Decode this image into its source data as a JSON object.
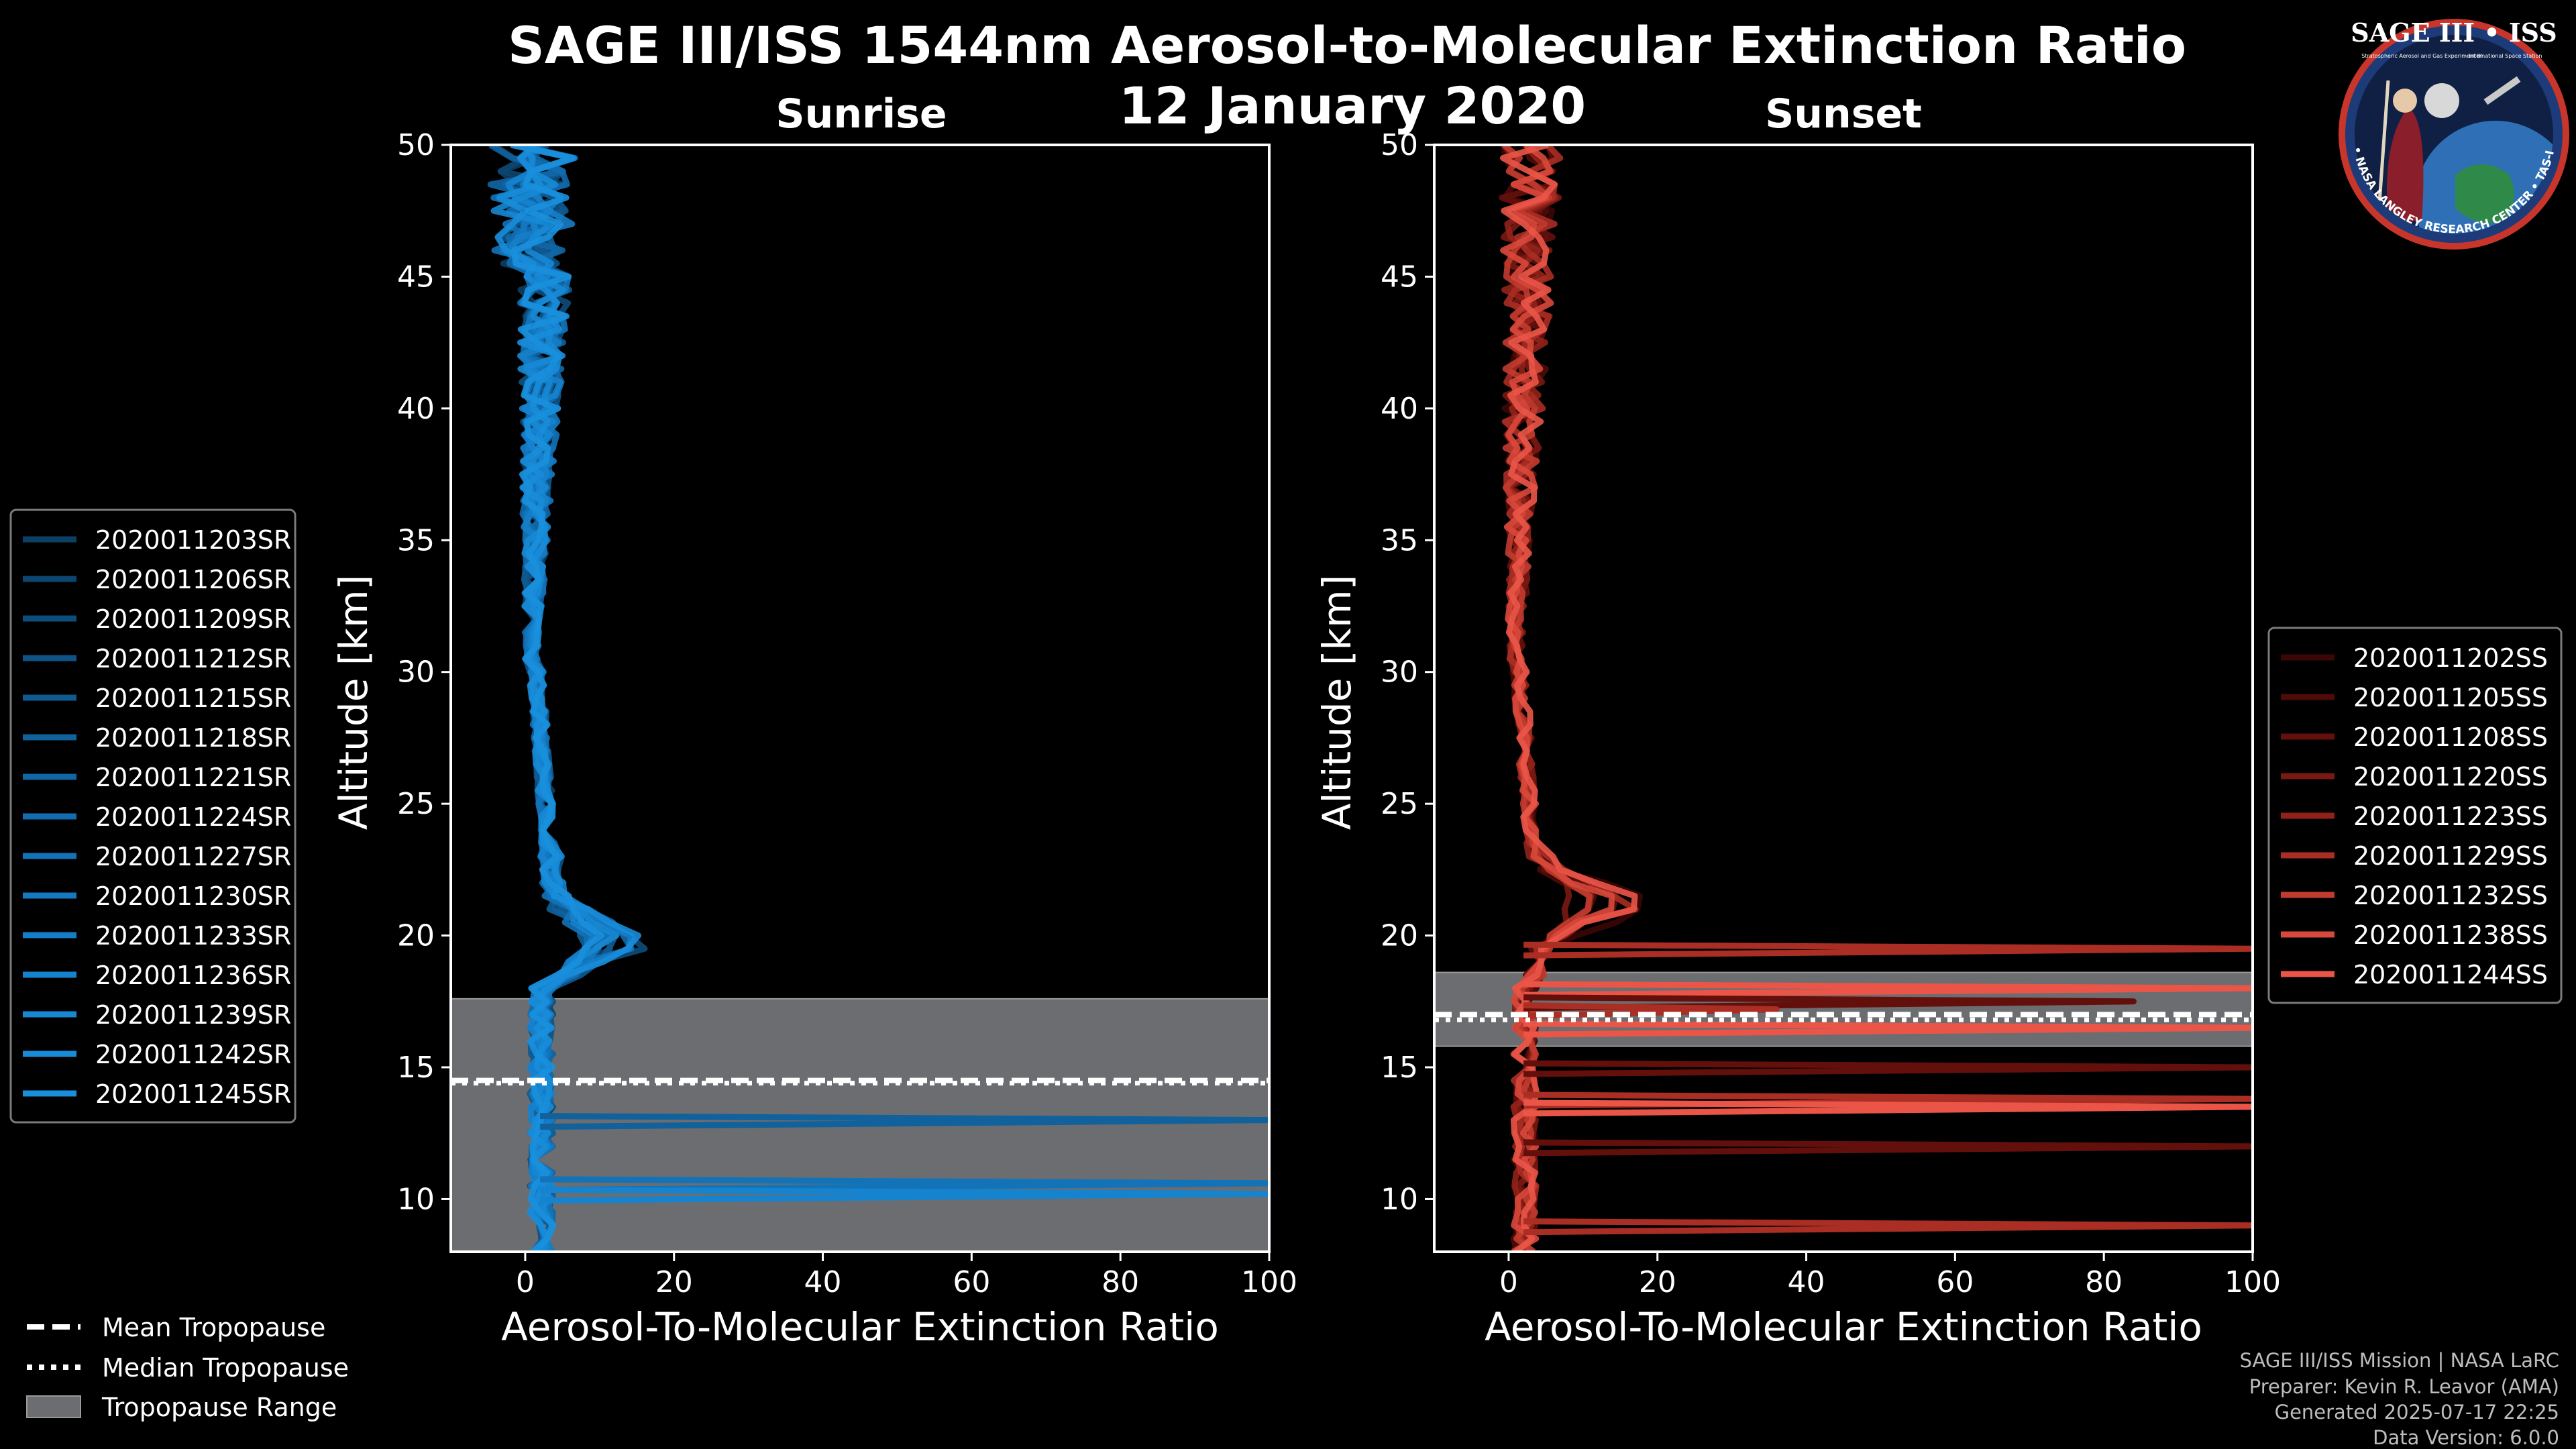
{
  "figure": {
    "title": "SAGE III/ISS 1544nm Aerosol-to-Molecular Extinction Ratio",
    "date": "12 January 2020",
    "footer": {
      "mission": "SAGE III/ISS Mission | NASA LaRC",
      "preparer": "Preparer: Kevin R. Leavor (AMA)",
      "generated": "Generated 2025-07-17 22:25",
      "version": "Data Version: 6.0.0"
    },
    "logo": {
      "name": "SAGE III • ISS",
      "line2": "Stratospheric Aerosol and Gas Experiment III",
      "line3": "International Space Station",
      "ring": "BALL • NASA LANGLEY RESEARCH CENTER • TAS-I • ESA"
    },
    "tropopause_legend": [
      "Mean Tropopause",
      "Median Tropopause",
      "Tropopause Range"
    ]
  },
  "chart_data": [
    {
      "type": "line",
      "title": "Sunrise",
      "xlabel": "Aerosol-To-Molecular Extinction Ratio",
      "ylabel": "Altitude [km]",
      "xlim": [
        -10,
        100
      ],
      "ylim": [
        8,
        50
      ],
      "xticks": [
        0,
        20,
        40,
        60,
        80,
        100
      ],
      "yticks": [
        10,
        15,
        20,
        25,
        30,
        35,
        40,
        45,
        50
      ],
      "tropopause": {
        "mean": 14.5,
        "median": 14.4,
        "range": [
          8,
          17.6
        ]
      },
      "series": [
        {
          "name": "2020011203SR",
          "color": "#0b3f63"
        },
        {
          "name": "2020011206SR",
          "color": "#0c4670"
        },
        {
          "name": "2020011209SR",
          "color": "#0d4d7b"
        },
        {
          "name": "2020011212SR",
          "color": "#0e5386"
        },
        {
          "name": "2020011215SR",
          "color": "#0f5a91"
        },
        {
          "name": "2020011218SR",
          "color": "#10619c"
        },
        {
          "name": "2020011221SR",
          "color": "#1167a6"
        },
        {
          "name": "2020011224SR",
          "color": "#126db0"
        },
        {
          "name": "2020011227SR",
          "color": "#1373b9"
        },
        {
          "name": "2020011230SR",
          "color": "#1479c1"
        },
        {
          "name": "2020011233SR",
          "color": "#157ec8"
        },
        {
          "name": "2020011236SR",
          "color": "#1683cf"
        },
        {
          "name": "2020011239SR",
          "color": "#1788d4"
        },
        {
          "name": "2020011242SR",
          "color": "#188cd9"
        },
        {
          "name": "2020011245SR",
          "color": "#1990dd"
        }
      ],
      "excursions": [
        {
          "altitude": 13.0,
          "value": 100
        },
        {
          "altitude": 10.6,
          "value": 100
        },
        {
          "altitude": 10.2,
          "value": 100
        }
      ]
    },
    {
      "type": "line",
      "title": "Sunset",
      "xlabel": "Aerosol-To-Molecular Extinction Ratio",
      "ylabel": "Altitude [km]",
      "xlim": [
        -10,
        100
      ],
      "ylim": [
        8,
        50
      ],
      "xticks": [
        0,
        20,
        40,
        60,
        80,
        100
      ],
      "yticks": [
        10,
        15,
        20,
        25,
        30,
        35,
        40,
        45,
        50
      ],
      "tropopause": {
        "mean": 17.0,
        "median": 16.8,
        "range": [
          15.8,
          18.6
        ]
      },
      "series": [
        {
          "name": "2020011202SS",
          "color": "#3a0705"
        },
        {
          "name": "2020011205SS",
          "color": "#4e0b08"
        },
        {
          "name": "2020011208SS",
          "color": "#63100c"
        },
        {
          "name": "2020011220SS",
          "color": "#7a1812"
        },
        {
          "name": "2020011223SS",
          "color": "#922219"
        },
        {
          "name": "2020011229SS",
          "color": "#aa2e23"
        },
        {
          "name": "2020011232SS",
          "color": "#c23b2f"
        },
        {
          "name": "2020011238SS",
          "color": "#d8483b"
        },
        {
          "name": "2020011244SS",
          "color": "#ea5548"
        }
      ],
      "excursions": [
        {
          "altitude": 19.5,
          "value": 100
        },
        {
          "altitude": 18.0,
          "value": 100
        },
        {
          "altitude": 17.5,
          "value": 84
        },
        {
          "altitude": 17.2,
          "value": 36
        },
        {
          "altitude": 16.5,
          "value": 100
        },
        {
          "altitude": 15.0,
          "value": 100
        },
        {
          "altitude": 13.8,
          "value": 100
        },
        {
          "altitude": 13.5,
          "value": 100
        },
        {
          "altitude": 12.0,
          "value": 100
        },
        {
          "altitude": 9.0,
          "value": 100
        }
      ]
    }
  ]
}
